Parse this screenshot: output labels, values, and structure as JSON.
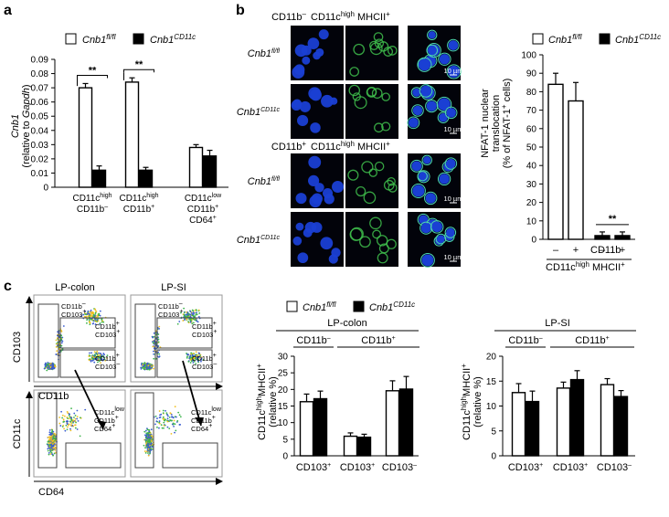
{
  "panels": {
    "a": "a",
    "b": "b",
    "c": "c"
  },
  "legend": {
    "fl": "Cnb1",
    "fl_sup": "fl/fl",
    "cd": "Cnb1",
    "cd_sup": "CD11c"
  },
  "chart_data": [
    {
      "id": "a",
      "type": "bar",
      "ylabel_gene": "Cnb1",
      "ylabel": "(relative to",
      "ylabel_gene2": "Gapdh",
      "ylim": [
        0,
        0.09
      ],
      "yticks": [
        "0",
        "0.01",
        "0.02",
        "0.03",
        "0.04",
        "0.05",
        "0.06",
        "0.07",
        "0.08",
        "0.09"
      ],
      "groups": [
        {
          "line1": "CD11c",
          "line1_sup": "high",
          "line2": "CD11b",
          "line2_sup": "–",
          "line3": ""
        },
        {
          "line1": "CD11c",
          "line1_sup": "high",
          "line2": "CD11b",
          "line2_sup": "+",
          "line3": ""
        },
        {
          "line1": "CD11c",
          "line1_sup": "low",
          "line2": "CD11b",
          "line2_sup": "+",
          "line3": "CD64"
        }
      ],
      "line3_sup": "+",
      "series": [
        {
          "name": "Cnb1 fl/fl",
          "values": [
            0.07,
            0.074,
            0.028
          ],
          "errors": [
            0.003,
            0.003,
            0.002
          ]
        },
        {
          "name": "Cnb1 CD11c",
          "values": [
            0.012,
            0.012,
            0.022
          ],
          "errors": [
            0.003,
            0.002,
            0.004
          ]
        }
      ],
      "significance": [
        "**",
        "**"
      ]
    },
    {
      "id": "b",
      "type": "bar",
      "ylabel": [
        "NFAT-1 nuclear",
        "translocation",
        "(% of NFAT-1",
        "cells)"
      ],
      "ylabel_sup": "+",
      "ylim": [
        0,
        100
      ],
      "yticks": [
        "0",
        "10",
        "20",
        "30",
        "40",
        "50",
        "60",
        "70",
        "80",
        "90",
        "100"
      ],
      "xticks": [
        "–",
        "+",
        "–",
        "+"
      ],
      "xtick_suffix": "CD11b",
      "xgroup": "CD11c",
      "xgroup_sup": "high",
      "xgroup2": "MHCII",
      "xgroup2_sup": "+",
      "values": [
        84,
        75,
        2,
        2
      ],
      "errors": [
        6,
        10,
        2,
        2
      ],
      "fills": [
        "#ffffff",
        "#ffffff",
        "#000000",
        "#000000"
      ],
      "significance": "**"
    },
    {
      "id": "c-colon",
      "type": "bar",
      "title": "LP-colon",
      "ylabel": "CD11c",
      "ylabel_sup": "high",
      "ylabel2": "MHCII",
      "ylabel2_sup": "+",
      "ylabel3": "(relative %)",
      "ylim": [
        0,
        30
      ],
      "yticks": [
        "0",
        "5",
        "10",
        "15",
        "20",
        "25",
        "30"
      ],
      "brackets": [
        "CD11b–",
        "CD11b+"
      ],
      "categories": [
        "CD103+",
        "CD103+",
        "CD103–"
      ],
      "series": [
        {
          "name": "Cnb1 fl/fl",
          "values": [
            16.3,
            5.9,
            19.6
          ],
          "errors": [
            2.3,
            1.0,
            3.0
          ]
        },
        {
          "name": "Cnb1 CD11c",
          "values": [
            17.2,
            5.6,
            20.1
          ],
          "errors": [
            2.3,
            0.9,
            3.8
          ]
        }
      ]
    },
    {
      "id": "c-si",
      "type": "bar",
      "title": "LP-SI",
      "ylim": [
        0,
        20
      ],
      "yticks": [
        "0",
        "5",
        "10",
        "15",
        "20"
      ],
      "brackets": [
        "CD11b–",
        "CD11b+"
      ],
      "categories": [
        "CD103+",
        "CD103+",
        "CD103–"
      ],
      "series": [
        {
          "name": "Cnb1 fl/fl",
          "values": [
            12.7,
            13.6,
            14.3
          ],
          "errors": [
            1.8,
            1.2,
            1.2
          ]
        },
        {
          "name": "Cnb1 CD11c",
          "values": [
            10.9,
            15.3,
            11.9
          ],
          "errors": [
            2.1,
            1.8,
            1.2
          ]
        }
      ]
    }
  ],
  "micro": {
    "col_headers": [
      "CD11b",
      "–",
      "CD11c",
      "high",
      "MHCII",
      "+"
    ],
    "col_headers2": [
      "CD11b",
      "+",
      "CD11c",
      "high",
      "MHCII",
      "+"
    ],
    "row_gene": "Cnb1",
    "rows": [
      "fl/fl",
      "CD11c",
      "fl/fl",
      "CD11c"
    ],
    "scale": "10 µm"
  },
  "flow": {
    "titles": [
      "LP-colon",
      "LP-SI"
    ],
    "gates": [
      [
        "CD11b",
        "–",
        "CD103",
        "+"
      ],
      [
        "CD11b",
        "+",
        "CD103",
        "+"
      ],
      [
        "CD11b",
        "+",
        "CD103",
        "–"
      ]
    ],
    "gate_low": [
      "CD11c",
      "low",
      "CD11b",
      "+",
      "CD64",
      "+"
    ],
    "axes": {
      "top_y": "CD103",
      "top_x": "CD11b",
      "bot_y": "CD11c",
      "bot_x": "CD64"
    }
  }
}
